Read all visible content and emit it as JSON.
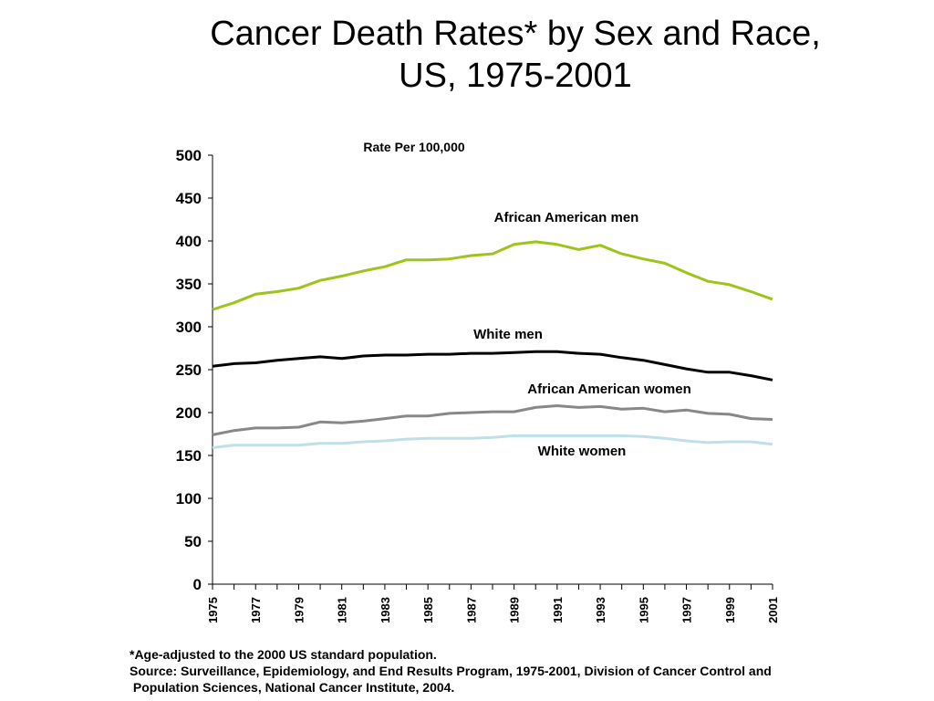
{
  "title_line1": "Cancer Death Rates* by Sex and Race,",
  "title_line2": "US, 1975-2001",
  "footnote": {
    "line1": "*Age-adjusted to the 2000 US standard population.",
    "line2": "Source: Surveillance, Epidemiology, and End Results Program, 1975-2001, Division of Cancer Control and",
    "line3": " Population Sciences, National Cancer Institute, 2004."
  },
  "chart_data": {
    "type": "line",
    "ylabel": "Rate Per 100,000",
    "ylim": [
      0,
      500
    ],
    "yticks": [
      0,
      50,
      100,
      150,
      200,
      250,
      300,
      350,
      400,
      450,
      500
    ],
    "x": [
      1975,
      1976,
      1977,
      1978,
      1979,
      1980,
      1981,
      1982,
      1983,
      1984,
      1985,
      1986,
      1987,
      1988,
      1989,
      1990,
      1991,
      1992,
      1993,
      1994,
      1995,
      1996,
      1997,
      1998,
      1999,
      2000,
      2001
    ],
    "xticks": [
      1975,
      1977,
      1979,
      1981,
      1983,
      1985,
      1987,
      1989,
      1991,
      1993,
      1995,
      1997,
      1999,
      2001
    ],
    "legend": "inline labels",
    "grid": false,
    "series": [
      {
        "name": "African American men",
        "color": "#9dc41a",
        "values": [
          320,
          328,
          338,
          341,
          345,
          354,
          359,
          365,
          370,
          378,
          378,
          379,
          383,
          385,
          396,
          399,
          396,
          390,
          395,
          385,
          379,
          374,
          363,
          353,
          349,
          341,
          332
        ]
      },
      {
        "name": "White men",
        "color": "#000000",
        "values": [
          254,
          257,
          258,
          261,
          263,
          265,
          263,
          266,
          267,
          267,
          268,
          268,
          269,
          269,
          270,
          271,
          271,
          269,
          268,
          264,
          261,
          256,
          251,
          247,
          247,
          243,
          238
        ]
      },
      {
        "name": "African American women",
        "color": "#888888",
        "values": [
          174,
          179,
          182,
          182,
          183,
          189,
          188,
          190,
          193,
          196,
          196,
          199,
          200,
          201,
          201,
          206,
          208,
          206,
          207,
          204,
          205,
          201,
          203,
          199,
          198,
          193,
          192
        ]
      },
      {
        "name": "White women",
        "color": "#bfe0e6",
        "values": [
          159,
          162,
          162,
          162,
          162,
          164,
          164,
          166,
          167,
          169,
          170,
          170,
          170,
          171,
          173,
          173,
          173,
          173,
          173,
          173,
          172,
          170,
          167,
          165,
          166,
          166,
          163
        ]
      }
    ]
  }
}
